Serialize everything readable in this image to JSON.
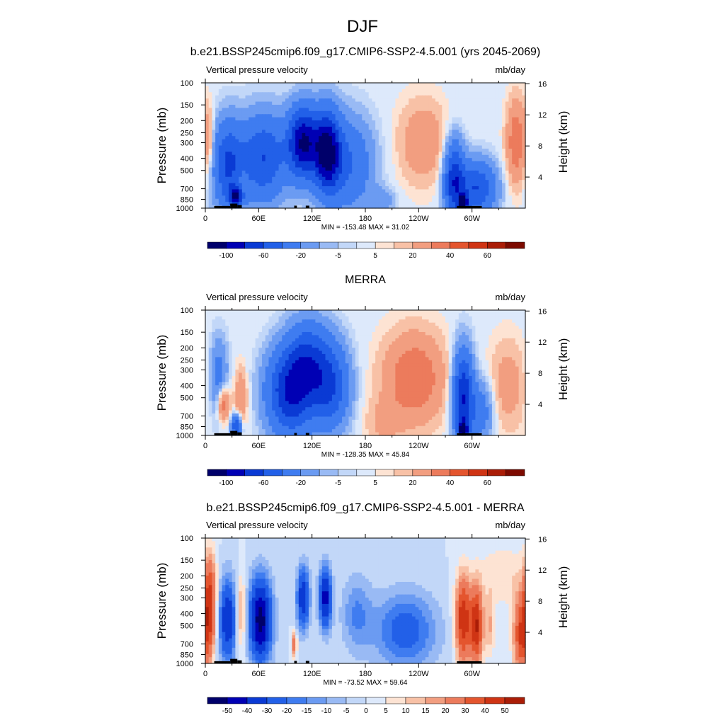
{
  "figure": {
    "title": "DJF"
  },
  "chart_data": [
    {
      "type": "heatmap",
      "title": "b.e21.BSSP245cmip6.f09_g17.CMIP6-SSP2-4.5.001 (yrs 2045-2069)",
      "left_label": "Vertical pressure velocity",
      "right_label": "mb/day",
      "ylabel": "Pressure (mb)",
      "y2label": "Height (km)",
      "x_ticks": [
        "0",
        "60E",
        "120E",
        "180",
        "120W",
        "60W"
      ],
      "x_tick_lons": [
        0,
        60,
        120,
        180,
        240,
        300
      ],
      "y_ticks": [
        "100",
        "150",
        "200",
        "250",
        "300",
        "400",
        "500",
        "700",
        "850",
        "1000"
      ],
      "y2_ticks": [
        "4",
        "8",
        "12",
        "16"
      ],
      "stats": "MIN = -153.48  MAX =  31.02",
      "min": -153.48,
      "max": 31.02,
      "colorbar": {
        "levels": [
          -120,
          -100,
          -80,
          -60,
          -40,
          -20,
          -10,
          -5,
          -2,
          2,
          5,
          10,
          20,
          30,
          40,
          50,
          60,
          70
        ],
        "labels": [
          "-100",
          "-60",
          "-20",
          "-5",
          "5",
          "20",
          "40",
          "60"
        ]
      },
      "features": [
        {
          "lon": 25,
          "p": 450,
          "value": -60,
          "wlon": 12,
          "wp": 0.55
        },
        {
          "lon": 35,
          "p": 800,
          "value": -80,
          "wlon": 6,
          "wp": 0.12
        },
        {
          "lon": 42,
          "p": 700,
          "value": 15,
          "wlon": 3,
          "wp": 0.25
        },
        {
          "lon": 65,
          "p": 400,
          "value": -60,
          "wlon": 18,
          "wp": 0.55
        },
        {
          "lon": 110,
          "p": 300,
          "value": -100,
          "wlon": 12,
          "wp": 0.45
        },
        {
          "lon": 137,
          "p": 350,
          "value": -100,
          "wlon": 10,
          "wp": 0.5
        },
        {
          "lon": 160,
          "p": 450,
          "value": -40,
          "wlon": 20,
          "wp": 0.6
        },
        {
          "lon": 200,
          "p": 850,
          "value": -15,
          "wlon": 10,
          "wp": 0.15
        },
        {
          "lon": 245,
          "p": 300,
          "value": 18,
          "wlon": 20,
          "wp": 0.55
        },
        {
          "lon": 280,
          "p": 600,
          "value": -70,
          "wlon": 8,
          "wp": 0.5
        },
        {
          "lon": 290,
          "p": 900,
          "value": -140,
          "wlon": 3,
          "wp": 0.08
        },
        {
          "lon": 305,
          "p": 700,
          "value": -60,
          "wlon": 15,
          "wp": 0.35
        },
        {
          "lon": 350,
          "p": 300,
          "value": 30,
          "wlon": 8,
          "wp": 0.55
        },
        {
          "lon": 5,
          "p": 300,
          "value": 15,
          "wlon": 4,
          "wp": 0.45
        }
      ]
    },
    {
      "type": "heatmap",
      "title": "MERRA",
      "left_label": "Vertical pressure velocity",
      "right_label": "mb/day",
      "ylabel": "Pressure (mb)",
      "y2label": "Height (km)",
      "x_ticks": [
        "0",
        "60E",
        "120E",
        "180",
        "120W",
        "60W"
      ],
      "x_tick_lons": [
        0,
        60,
        120,
        180,
        240,
        300
      ],
      "y_ticks": [
        "100",
        "150",
        "200",
        "250",
        "300",
        "400",
        "500",
        "700",
        "850",
        "1000"
      ],
      "y2_ticks": [
        "4",
        "8",
        "12",
        "16"
      ],
      "stats": "MIN = -128.35  MAX =  45.84",
      "min": -128.35,
      "max": 45.84,
      "colorbar": {
        "levels": [
          -120,
          -100,
          -80,
          -60,
          -40,
          -20,
          -10,
          -5,
          -2,
          2,
          5,
          10,
          20,
          30,
          40,
          50,
          60,
          70
        ],
        "labels": [
          "-100",
          "-60",
          "-20",
          "-5",
          "5",
          "20",
          "40",
          "60"
        ]
      },
      "features": [
        {
          "lon": 15,
          "p": 350,
          "value": -30,
          "wlon": 7,
          "wp": 0.5
        },
        {
          "lon": 20,
          "p": 550,
          "value": 35,
          "wlon": 5,
          "wp": 0.25
        },
        {
          "lon": 40,
          "p": 500,
          "value": 20,
          "wlon": 5,
          "wp": 0.4
        },
        {
          "lon": 35,
          "p": 850,
          "value": -60,
          "wlon": 4,
          "wp": 0.15
        },
        {
          "lon": 95,
          "p": 450,
          "value": -80,
          "wlon": 18,
          "wp": 0.55
        },
        {
          "lon": 140,
          "p": 400,
          "value": -60,
          "wlon": 15,
          "wp": 0.55
        },
        {
          "lon": 115,
          "p": 250,
          "value": -50,
          "wlon": 15,
          "wp": 0.5
        },
        {
          "lon": 235,
          "p": 350,
          "value": 30,
          "wlon": 25,
          "wp": 0.6
        },
        {
          "lon": 200,
          "p": 800,
          "value": 10,
          "wlon": 15,
          "wp": 0.3
        },
        {
          "lon": 290,
          "p": 500,
          "value": -80,
          "wlon": 8,
          "wp": 0.6
        },
        {
          "lon": 290,
          "p": 900,
          "value": -110,
          "wlon": 3,
          "wp": 0.1
        },
        {
          "lon": 340,
          "p": 400,
          "value": 15,
          "wlon": 15,
          "wp": 0.6
        },
        {
          "lon": 310,
          "p": 650,
          "value": -30,
          "wlon": 10,
          "wp": 0.4
        }
      ]
    },
    {
      "type": "heatmap",
      "title": "b.e21.BSSP245cmip6.f09_g17.CMIP6-SSP2-4.5.001 - MERRA",
      "left_label": "Vertical pressure velocity",
      "right_label": "mb/day",
      "ylabel": "Pressure (mb)",
      "y2label": "Height (km)",
      "x_ticks": [
        "0",
        "60E",
        "120E",
        "180",
        "120W",
        "60W"
      ],
      "x_tick_lons": [
        0,
        60,
        120,
        180,
        240,
        300
      ],
      "y_ticks": [
        "100",
        "150",
        "200",
        "250",
        "300",
        "400",
        "500",
        "700",
        "850",
        "1000"
      ],
      "y2_ticks": [
        "4",
        "8",
        "12",
        "16"
      ],
      "stats": "MIN = -73.52  MAX =  59.64",
      "min": -73.52,
      "max": 59.64,
      "colorbar": {
        "levels": [
          -60,
          -50,
          -40,
          -30,
          -20,
          -15,
          -10,
          -5,
          0,
          5,
          10,
          15,
          20,
          30,
          40,
          50,
          60
        ],
        "labels": [
          "-50",
          "-40",
          "-30",
          "-20",
          "-15",
          "-10",
          "-5",
          "0",
          "5",
          "10",
          "15",
          "20",
          "30",
          "40",
          "50"
        ]
      },
      "features": [
        {
          "lon": 5,
          "p": 350,
          "value": 45,
          "wlon": 5,
          "wp": 0.6
        },
        {
          "lon": 25,
          "p": 450,
          "value": -40,
          "wlon": 7,
          "wp": 0.55
        },
        {
          "lon": 40,
          "p": 400,
          "value": 20,
          "wlon": 4,
          "wp": 0.5
        },
        {
          "lon": 62,
          "p": 450,
          "value": -55,
          "wlon": 9,
          "wp": 0.55
        },
        {
          "lon": 100,
          "p": 700,
          "value": 30,
          "wlon": 2,
          "wp": 0.15
        },
        {
          "lon": 110,
          "p": 300,
          "value": -40,
          "wlon": 5,
          "wp": 0.4
        },
        {
          "lon": 135,
          "p": 300,
          "value": -45,
          "wlon": 5,
          "wp": 0.4
        },
        {
          "lon": 170,
          "p": 400,
          "value": -15,
          "wlon": 12,
          "wp": 0.5
        },
        {
          "lon": 225,
          "p": 550,
          "value": -25,
          "wlon": 25,
          "wp": 0.5
        },
        {
          "lon": 290,
          "p": 450,
          "value": 50,
          "wlon": 6,
          "wp": 0.55
        },
        {
          "lon": 305,
          "p": 500,
          "value": 50,
          "wlon": 5,
          "wp": 0.5
        },
        {
          "lon": 320,
          "p": 500,
          "value": 15,
          "wlon": 4,
          "wp": 0.4
        },
        {
          "lon": 355,
          "p": 600,
          "value": 40,
          "wlon": 6,
          "wp": 0.5
        },
        {
          "lon": 335,
          "p": 200,
          "value": 10,
          "wlon": 20,
          "wp": 0.4
        }
      ]
    }
  ],
  "terrain": [
    {
      "lon0": 10,
      "lon1": 28,
      "p": 960
    },
    {
      "lon0": 28,
      "lon1": 36,
      "p": 920
    },
    {
      "lon0": 36,
      "lon1": 41,
      "p": 945
    },
    {
      "lon0": 100,
      "lon1": 103,
      "p": 955
    },
    {
      "lon0": 113,
      "lon1": 117,
      "p": 955
    },
    {
      "lon0": 283,
      "lon1": 311,
      "p": 960
    }
  ],
  "colors": {
    "palette": [
      "#00006a",
      "#0000b4",
      "#0a3ad4",
      "#2260e8",
      "#3f7cf0",
      "#6b9bf2",
      "#99baf4",
      "#c2d7f8",
      "#dde9fb",
      "#fde3d3",
      "#f8c1a6",
      "#f29e80",
      "#ec7b5c",
      "#e4552e",
      "#cf3414",
      "#aa1d07",
      "#7c0a00"
    ]
  }
}
